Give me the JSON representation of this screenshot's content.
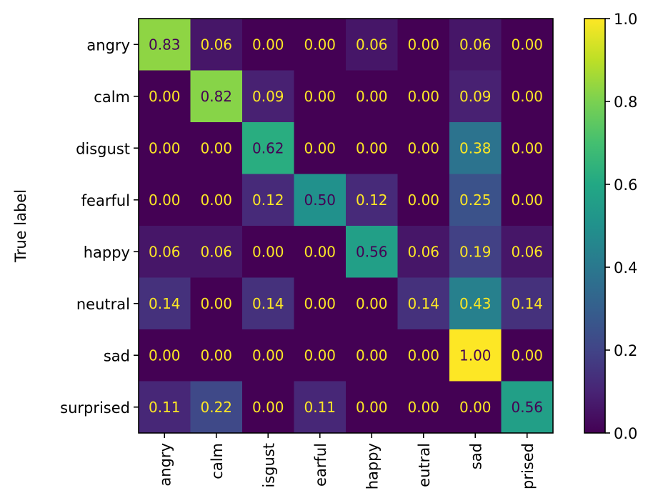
{
  "chart_data": {
    "type": "heatmap",
    "title": "",
    "xlabel": "",
    "ylabel": "True label",
    "row_labels": [
      "angry",
      "calm",
      "disgust",
      "fearful",
      "happy",
      "neutral",
      "sad",
      "surprised"
    ],
    "col_labels": [
      "angry",
      "calm",
      "isgust",
      "earful",
      "happy",
      "eutral",
      "sad",
      "prised"
    ],
    "values": [
      [
        0.83,
        0.06,
        0.0,
        0.0,
        0.06,
        0.0,
        0.06,
        0.0
      ],
      [
        0.0,
        0.82,
        0.09,
        0.0,
        0.0,
        0.0,
        0.09,
        0.0
      ],
      [
        0.0,
        0.0,
        0.62,
        0.0,
        0.0,
        0.0,
        0.38,
        0.0
      ],
      [
        0.0,
        0.0,
        0.12,
        0.5,
        0.12,
        0.0,
        0.25,
        0.0
      ],
      [
        0.06,
        0.06,
        0.0,
        0.0,
        0.56,
        0.06,
        0.19,
        0.06
      ],
      [
        0.14,
        0.0,
        0.14,
        0.0,
        0.0,
        0.14,
        0.43,
        0.14
      ],
      [
        0.0,
        0.0,
        0.0,
        0.0,
        0.0,
        0.0,
        1.0,
        0.0
      ],
      [
        0.11,
        0.22,
        0.0,
        0.11,
        0.0,
        0.0,
        0.0,
        0.56
      ]
    ],
    "value_labels": [
      [
        "0.83",
        "0.06",
        "0.00",
        "0.00",
        "0.06",
        "0.00",
        "0.06",
        "0.00"
      ],
      [
        "0.00",
        "0.82",
        "0.09",
        "0.00",
        "0.00",
        "0.00",
        "0.09",
        "0.00"
      ],
      [
        "0.00",
        "0.00",
        "0.62",
        "0.00",
        "0.00",
        "0.00",
        "0.38",
        "0.00"
      ],
      [
        "0.00",
        "0.00",
        "0.12",
        "0.50",
        "0.12",
        "0.00",
        "0.25",
        "0.00"
      ],
      [
        "0.06",
        "0.06",
        "0.00",
        "0.00",
        "0.56",
        "0.06",
        "0.19",
        "0.06"
      ],
      [
        "0.14",
        "0.00",
        "0.14",
        "0.00",
        "0.00",
        "0.14",
        "0.43",
        "0.14"
      ],
      [
        "0.00",
        "0.00",
        "0.00",
        "0.00",
        "0.00",
        "0.00",
        "1.00",
        "0.00"
      ],
      [
        "0.11",
        "0.22",
        "0.00",
        "0.11",
        "0.00",
        "0.00",
        "0.00",
        "0.56"
      ]
    ],
    "colormap": "viridis",
    "colorbar": {
      "range": [
        0.0,
        1.0
      ],
      "ticks": [
        0.0,
        0.2,
        0.4,
        0.6,
        0.8,
        1.0
      ],
      "tick_labels": [
        "0.0",
        "0.2",
        "0.4",
        "0.6",
        "0.8",
        "1.0"
      ]
    },
    "text_colors": {
      "on_dark": "#fde725",
      "on_light": "#440154"
    },
    "grid": false
  }
}
